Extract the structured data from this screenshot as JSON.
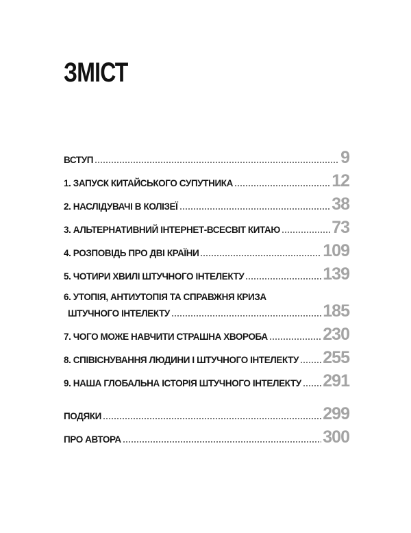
{
  "toc": {
    "title": "ЗМІСТ",
    "entries": [
      {
        "label": "ВСТУП",
        "page": "9"
      },
      {
        "label": "1. ЗАПУСК КИТАЙСЬКОГО СУПУТНИКА",
        "page": "12"
      },
      {
        "label": "2. НАСЛІДУВАЧІ В КОЛІЗЕЇ",
        "page": "38"
      },
      {
        "label": "3. АЛЬТЕРНАТИВНИЙ ІНТЕРНЕТ-ВСЕСВІТ КИТАЮ",
        "page": "73"
      },
      {
        "label": "4. РОЗПОВІДЬ ПРО ДВІ КРАЇНИ",
        "page": "109"
      },
      {
        "label": "5. ЧОТИРИ ХВИЛІ ШТУЧНОГО ІНТЕЛЕКТУ",
        "page": "139"
      },
      {
        "label": "6. УТОПІЯ, АНТИУТОПІЯ ТА СПРАВЖНЯ КРИЗА",
        "label_line2": "ШТУЧНОГО ІНТЕЛЕКТУ",
        "page": "185"
      },
      {
        "label": "7. ЧОГО МОЖЕ НАВЧИТИ СТРАШНА ХВОРОБА",
        "page": "230"
      },
      {
        "label": "8. СПІВІСНУВАННЯ ЛЮДИНИ І ШТУЧНОГО ІНТЕЛЕКТУ",
        "page": "255"
      },
      {
        "label": "9. НАША ГЛОБАЛЬНА ІСТОРІЯ ШТУЧНОГО ІНТЕЛЕКТУ",
        "page": "291"
      }
    ],
    "back_matter": [
      {
        "label": "ПОДЯКИ",
        "page": "299"
      },
      {
        "label": "ПРО АВТОРА",
        "page": "300"
      }
    ]
  },
  "colors": {
    "background": "#ffffff",
    "heading_text": "#111111",
    "entry_text": "#161616",
    "page_number": "#a3a3a3",
    "leader_dots": "#555555"
  }
}
